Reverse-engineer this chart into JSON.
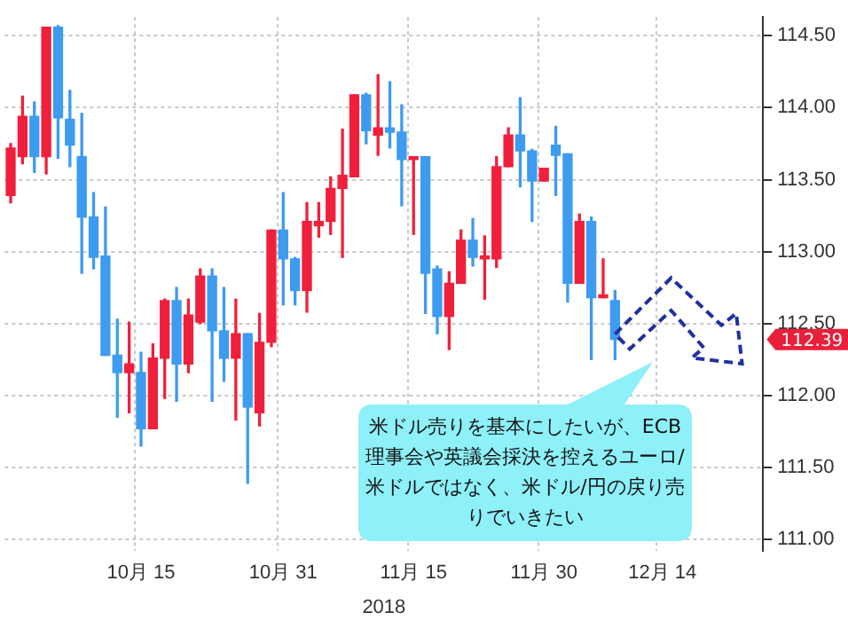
{
  "chart_data": {
    "type": "candlestick",
    "xlabel": "2018",
    "categories": [
      null,
      null,
      null,
      null,
      null,
      null,
      null,
      null,
      null,
      null,
      null,
      "10月 15",
      null,
      null,
      null,
      null,
      null,
      null,
      null,
      null,
      null,
      null,
      null,
      "10月 31",
      null,
      null,
      null,
      null,
      null,
      null,
      null,
      null,
      null,
      null,
      "11月 15",
      null,
      null,
      null,
      null,
      null,
      null,
      null,
      null,
      null,
      null,
      "11月 30",
      null,
      null,
      null,
      null,
      null,
      null,
      null,
      null,
      null,
      "12月 14",
      null,
      null,
      null,
      null,
      null,
      null,
      null,
      null
    ],
    "ohlc": [
      [
        113.39,
        113.75,
        113.34,
        113.72
      ],
      [
        113.66,
        114.08,
        113.61,
        113.94
      ],
      [
        113.94,
        114.04,
        113.55,
        113.66
      ],
      [
        113.66,
        114.56,
        113.54,
        114.56
      ],
      [
        114.56,
        114.57,
        113.65,
        113.93
      ],
      [
        113.92,
        114.12,
        113.59,
        113.74
      ],
      [
        113.66,
        113.96,
        112.85,
        113.24
      ],
      [
        113.24,
        113.41,
        112.88,
        112.96
      ],
      [
        112.97,
        113.31,
        112.28,
        112.28
      ],
      [
        112.28,
        112.53,
        111.85,
        112.16
      ],
      [
        112.16,
        112.51,
        111.88,
        112.22
      ],
      [
        112.16,
        112.3,
        111.65,
        111.77
      ],
      [
        111.77,
        112.36,
        111.77,
        112.26
      ],
      [
        112.26,
        112.67,
        111.98,
        112.66
      ],
      [
        112.66,
        112.75,
        111.96,
        112.22
      ],
      [
        112.22,
        112.67,
        112.16,
        112.56
      ],
      [
        112.51,
        112.88,
        112.5,
        112.83
      ],
      [
        112.83,
        112.88,
        111.96,
        112.45
      ],
      [
        112.45,
        112.75,
        112.1,
        112.26
      ],
      [
        112.26,
        112.67,
        111.83,
        112.43
      ],
      [
        112.43,
        112.43,
        111.39,
        111.92
      ],
      [
        111.88,
        112.57,
        111.79,
        112.37
      ],
      [
        112.37,
        113.15,
        112.34,
        113.15
      ],
      [
        113.15,
        113.41,
        112.63,
        112.95
      ],
      [
        112.95,
        112.96,
        112.63,
        112.73
      ],
      [
        112.73,
        113.34,
        112.58,
        113.21
      ],
      [
        113.18,
        113.34,
        113.1,
        113.21
      ],
      [
        113.21,
        113.52,
        113.12,
        113.44
      ],
      [
        113.44,
        113.85,
        112.96,
        113.53
      ],
      [
        113.52,
        114.09,
        113.52,
        114.09
      ],
      [
        114.09,
        114.1,
        113.75,
        113.84
      ],
      [
        113.81,
        114.23,
        113.67,
        113.86
      ],
      [
        113.86,
        114.18,
        113.72,
        113.83
      ],
      [
        113.83,
        114.02,
        113.32,
        113.64
      ],
      [
        113.64,
        113.66,
        113.12,
        113.66
      ],
      [
        113.66,
        113.66,
        112.57,
        112.85
      ],
      [
        112.88,
        112.9,
        112.43,
        112.55
      ],
      [
        112.55,
        112.86,
        112.32,
        112.78
      ],
      [
        112.78,
        113.15,
        112.78,
        113.08
      ],
      [
        113.08,
        113.23,
        112.9,
        112.96
      ],
      [
        112.95,
        113.11,
        112.67,
        112.97
      ],
      [
        112.95,
        113.66,
        112.89,
        113.59
      ],
      [
        113.59,
        113.86,
        113.59,
        113.81
      ],
      [
        113.81,
        114.07,
        113.45,
        113.7
      ],
      [
        113.7,
        113.71,
        113.21,
        113.49
      ],
      [
        113.49,
        113.58,
        113.49,
        113.58
      ],
      [
        113.74,
        113.87,
        113.39,
        113.67
      ],
      [
        113.68,
        113.68,
        112.65,
        112.78
      ],
      [
        112.78,
        113.26,
        112.78,
        113.21
      ],
      [
        113.21,
        113.24,
        112.25,
        112.68
      ],
      [
        112.68,
        112.95,
        112.68,
        112.7
      ],
      [
        112.66,
        112.73,
        112.25,
        112.39
      ],
      null,
      null,
      null,
      null,
      null,
      null,
      null,
      null,
      null,
      null,
      null,
      null
    ],
    "colors": [
      "#f0203c",
      "#f0203c",
      "#3d9bf0",
      "#f0203c",
      "#3d9bf0",
      "#3d9bf0",
      "#3d9bf0",
      "#3d9bf0",
      "#3d9bf0",
      "#3d9bf0",
      "#f0203c",
      "#3d9bf0",
      "#f0203c",
      "#f0203c",
      "#3d9bf0",
      "#f0203c",
      "#f0203c",
      "#3d9bf0",
      "#3d9bf0",
      "#f0203c",
      "#3d9bf0",
      "#f0203c",
      "#f0203c",
      "#3d9bf0",
      "#3d9bf0",
      "#f0203c",
      "#f0203c",
      "#f0203c",
      "#f0203c",
      "#f0203c",
      "#3d9bf0",
      "#f0203c",
      "#3d9bf0",
      "#3d9bf0",
      "#f0203c",
      "#3d9bf0",
      "#3d9bf0",
      "#f0203c",
      "#f0203c",
      "#3d9bf0",
      "#f0203c",
      "#f0203c",
      "#f0203c",
      "#3d9bf0",
      "#3d9bf0",
      "#f0203c",
      "#3d9bf0",
      "#3d9bf0",
      "#f0203c",
      "#3d9bf0",
      "#f0203c",
      "#3d9bf0",
      null,
      null,
      null,
      null,
      null,
      null,
      null,
      null,
      null,
      null,
      null,
      null
    ],
    "ylim": [
      110.92,
      114.63
    ],
    "yticks": [
      {
        "value": 111,
        "label": "111.00"
      },
      {
        "value": 111.5,
        "label": "111.50"
      },
      {
        "value": 112,
        "label": "112.00"
      },
      {
        "value": 112.5,
        "label": "112.50"
      },
      {
        "value": 113,
        "label": "113.00"
      },
      {
        "value": 113.5,
        "label": "113.50"
      },
      {
        "value": 114,
        "label": "114.00"
      },
      {
        "value": 114.5,
        "label": "114.50"
      }
    ],
    "grid": true,
    "legend": false,
    "annotations": [
      "米ドル売りを基本にしたいが、ECB理事会や英議会採決を控えるユーロ/米ドルではなく、米ドル/円の戻り売りでいきたい",
      "112.39"
    ]
  }
}
